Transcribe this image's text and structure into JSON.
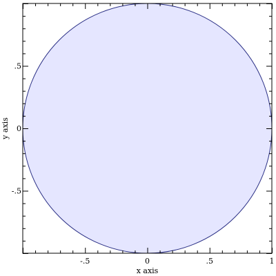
{
  "chart_data": {
    "type": "area",
    "shape": "circle",
    "title": "",
    "xlabel": "x axis",
    "ylabel": "y axis",
    "xlim": [
      -1,
      1
    ],
    "ylim": [
      -1,
      1
    ],
    "grid": false,
    "center": [
      0,
      0
    ],
    "radius": 1,
    "fill_color": "#e5e6ff",
    "line_color": "#2a2f85",
    "x_ticks": [
      {
        "value": -0.5,
        "label": "-.5"
      },
      {
        "value": 0,
        "label": "0"
      },
      {
        "value": 0.5,
        "label": ".5"
      },
      {
        "value": 1,
        "label": "1"
      }
    ],
    "y_ticks": [
      {
        "value": 0.5,
        "label": ".5"
      },
      {
        "value": 0,
        "label": "0"
      },
      {
        "value": -0.5,
        "label": "-.5"
      }
    ]
  }
}
